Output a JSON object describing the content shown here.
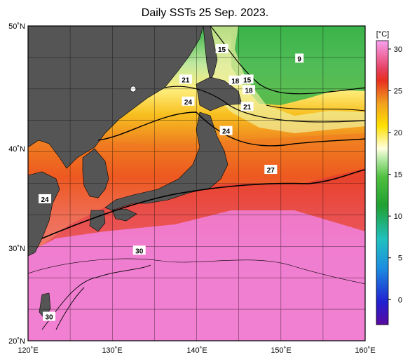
{
  "title": "Daily SSTs 25 Sep. 2023.",
  "colorbar": {
    "unit": "[°C]",
    "min": -3,
    "max": 31,
    "ticks": [
      "30",
      "25",
      "20",
      "15",
      "10",
      "5",
      "0"
    ],
    "tick_values": [
      30,
      25,
      20,
      15,
      10,
      5,
      0
    ]
  },
  "axes": {
    "x_ticks": [
      "120˚E",
      "130˚E",
      "140˚E",
      "150˚E",
      "160˚E"
    ],
    "y_ticks": [
      "50˚N",
      "40˚N",
      "30˚N",
      "20˚N"
    ]
  },
  "contour_labels": [
    {
      "text": "15",
      "lon": 143.0,
      "lat": 47.8
    },
    {
      "text": "9",
      "lon": 152.2,
      "lat": 46.9
    },
    {
      "text": "21",
      "lon": 138.7,
      "lat": 44.9
    },
    {
      "text": "18",
      "lon": 144.6,
      "lat": 44.8
    },
    {
      "text": "15",
      "lon": 146.0,
      "lat": 44.9
    },
    {
      "text": "18",
      "lon": 146.2,
      "lat": 43.9
    },
    {
      "text": "24",
      "lon": 139.0,
      "lat": 42.8
    },
    {
      "text": "21",
      "lon": 146.0,
      "lat": 42.3
    },
    {
      "text": "24",
      "lon": 143.5,
      "lat": 40.0
    },
    {
      "text": "27",
      "lon": 148.8,
      "lat": 36.3
    },
    {
      "text": "24",
      "lon": 122.0,
      "lat": 33.5
    },
    {
      "text": "30",
      "lon": 133.2,
      "lat": 28.6
    },
    {
      "text": "30",
      "lon": 122.5,
      "lat": 22.3
    }
  ],
  "colors": {
    "land": "#555555",
    "warm_pink": "#f07ed0",
    "orange": "#f07a20"
  }
}
